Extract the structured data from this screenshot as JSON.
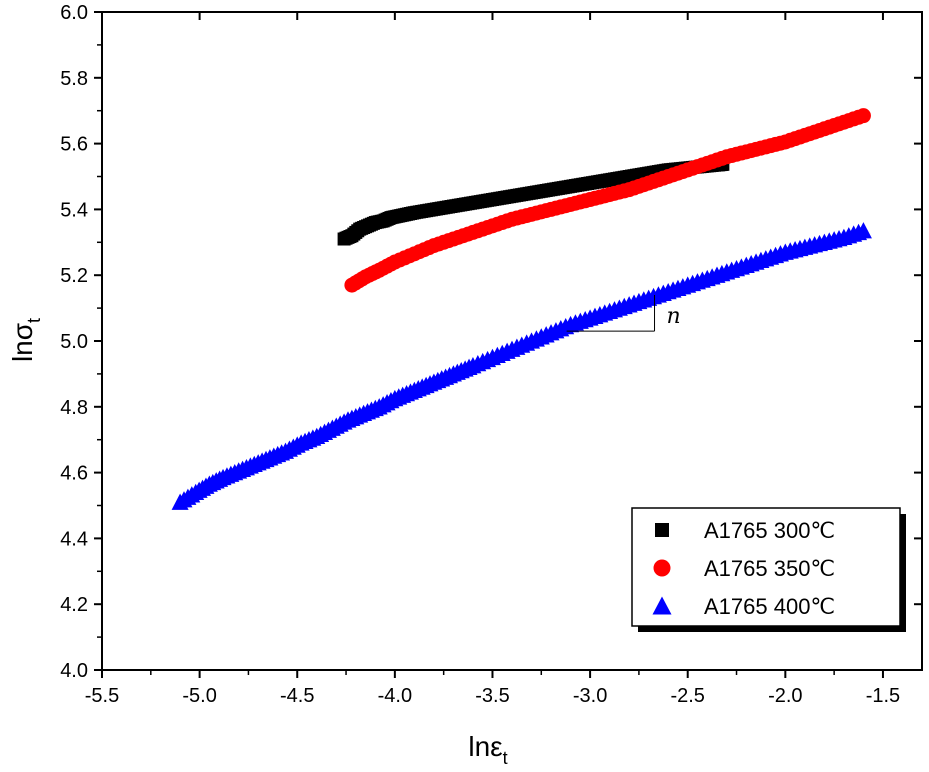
{
  "chart_data": {
    "type": "scatter",
    "xlabel": "lnε",
    "xlabel_sub": "t",
    "ylabel": "lnσ",
    "ylabel_sub": "t",
    "xlim": [
      -5.5,
      -1.3
    ],
    "ylim": [
      4.0,
      6.0
    ],
    "x_ticks": [
      -5.5,
      -5.0,
      -4.5,
      -4.0,
      -3.5,
      -3.0,
      -2.5,
      -2.0,
      -1.5
    ],
    "x_tick_labels": [
      "-5.5",
      "-5.0",
      "-4.5",
      "-4.0",
      "-3.5",
      "-3.0",
      "-2.5",
      "-2.0",
      "-1.5"
    ],
    "y_ticks": [
      4.0,
      4.2,
      4.4,
      4.6,
      4.8,
      5.0,
      5.2,
      5.4,
      5.6,
      5.8,
      6.0
    ],
    "y_tick_labels": [
      "4.0",
      "4.2",
      "4.4",
      "4.6",
      "4.8",
      "5.0",
      "5.2",
      "5.4",
      "5.6",
      "5.8",
      "6.0"
    ],
    "grid": false,
    "legend_position": "bottom-right",
    "annotation": "n",
    "series": [
      {
        "name": "A1765 300℃",
        "marker": "square",
        "color": "#000000",
        "x": [
          -4.26,
          -4.22,
          -4.18,
          -4.14,
          -4.1,
          -4.06,
          -4.02,
          -3.98,
          -3.94,
          -3.9,
          -3.85,
          -3.8,
          -3.75,
          -3.7,
          -3.65,
          -3.6,
          -3.55,
          -3.5,
          -3.45,
          -3.4,
          -3.35,
          -3.3,
          -3.25,
          -3.2,
          -3.15,
          -3.1,
          -3.05,
          -3.0,
          -2.95,
          -2.9,
          -2.85,
          -2.8,
          -2.75,
          -2.7,
          -2.65,
          -2.6,
          -2.55,
          -2.5,
          -2.45,
          -2.4,
          -2.35,
          -2.32
        ],
        "y": [
          5.31,
          5.32,
          5.34,
          5.35,
          5.36,
          5.365,
          5.375,
          5.38,
          5.385,
          5.39,
          5.395,
          5.4,
          5.405,
          5.41,
          5.415,
          5.42,
          5.425,
          5.43,
          5.435,
          5.44,
          5.445,
          5.45,
          5.455,
          5.46,
          5.465,
          5.47,
          5.475,
          5.48,
          5.485,
          5.49,
          5.495,
          5.5,
          5.505,
          5.51,
          5.515,
          5.52,
          5.523,
          5.526,
          5.529,
          5.532,
          5.535,
          5.537
        ]
      },
      {
        "name": "A1765 350℃",
        "marker": "circle",
        "color": "#ff0000",
        "x": [
          -4.22,
          -4.15,
          -4.08,
          -4.0,
          -3.9,
          -3.8,
          -3.7,
          -3.6,
          -3.5,
          -3.4,
          -3.3,
          -3.2,
          -3.1,
          -3.0,
          -2.9,
          -2.8,
          -2.7,
          -2.6,
          -2.5,
          -2.4,
          -2.3,
          -2.2,
          -2.1,
          -2.0,
          -1.9,
          -1.8,
          -1.7,
          -1.6
        ],
        "y": [
          5.17,
          5.195,
          5.215,
          5.24,
          5.265,
          5.29,
          5.31,
          5.33,
          5.35,
          5.37,
          5.385,
          5.4,
          5.415,
          5.43,
          5.445,
          5.46,
          5.48,
          5.5,
          5.52,
          5.54,
          5.56,
          5.575,
          5.59,
          5.605,
          5.625,
          5.645,
          5.665,
          5.685
        ]
      },
      {
        "name": "A1765 400℃",
        "marker": "triangle",
        "color": "#0000ff",
        "x": [
          -5.1,
          -5.02,
          -4.95,
          -4.88,
          -4.8,
          -4.72,
          -4.64,
          -4.56,
          -4.48,
          -4.4,
          -4.32,
          -4.24,
          -4.16,
          -4.08,
          -4.0,
          -3.92,
          -3.84,
          -3.76,
          -3.68,
          -3.6,
          -3.5,
          -3.4,
          -3.3,
          -3.2,
          -3.1,
          -3.0,
          -2.9,
          -2.8,
          -2.7,
          -2.6,
          -2.5,
          -2.4,
          -2.3,
          -2.2,
          -2.1,
          -2.0,
          -1.9,
          -1.8,
          -1.7,
          -1.6
        ],
        "y": [
          4.51,
          4.54,
          4.565,
          4.585,
          4.605,
          4.625,
          4.645,
          4.665,
          4.69,
          4.71,
          4.735,
          4.76,
          4.78,
          4.8,
          4.825,
          4.845,
          4.865,
          4.885,
          4.905,
          4.925,
          4.95,
          4.975,
          5.0,
          5.025,
          5.05,
          5.07,
          5.09,
          5.11,
          5.13,
          5.15,
          5.17,
          5.19,
          5.21,
          5.23,
          5.25,
          5.27,
          5.285,
          5.3,
          5.315,
          5.335
        ]
      }
    ]
  }
}
